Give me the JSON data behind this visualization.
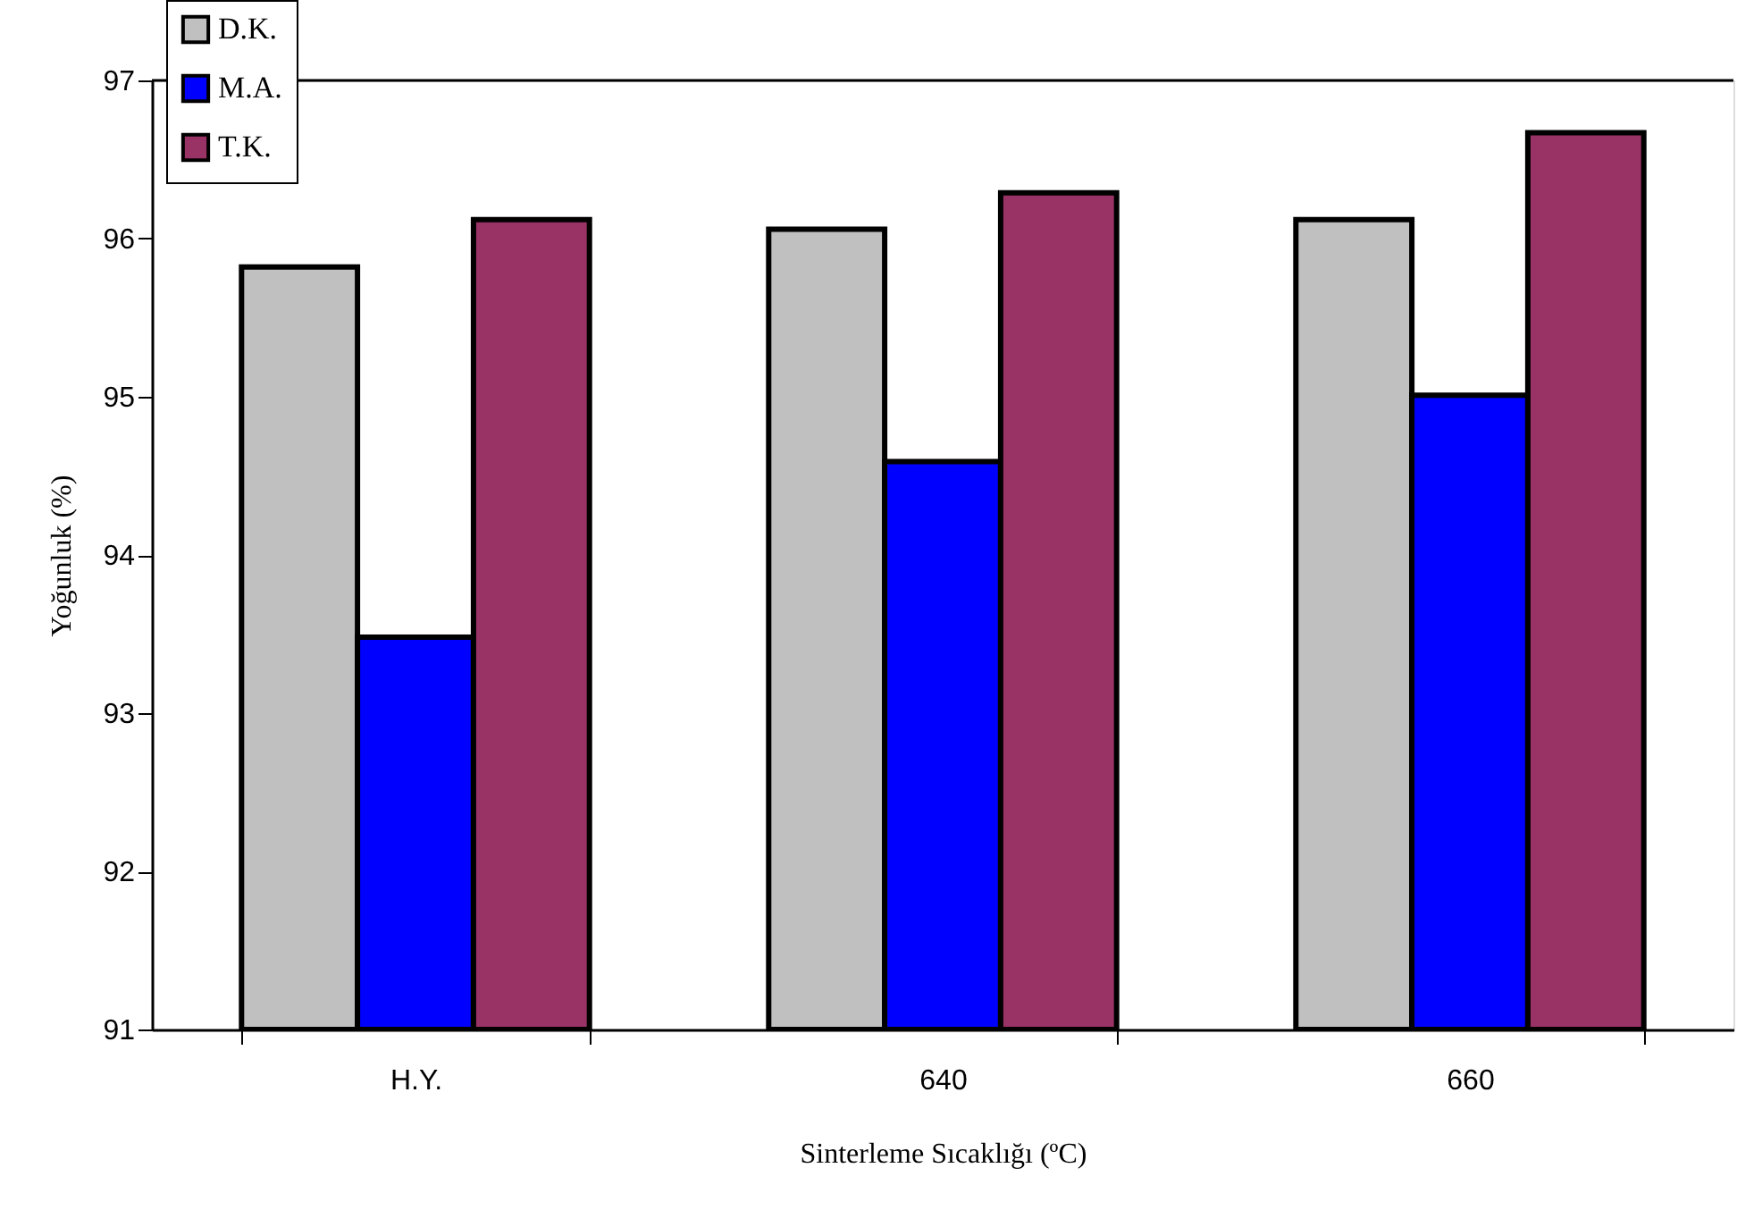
{
  "chart_data": {
    "type": "bar",
    "xlabel": "Sinterleme Sıcaklığı (ºC)",
    "ylabel": "Yoğunluk (%)",
    "categories": [
      "H.Y.",
      "640",
      "660"
    ],
    "series": [
      {
        "name": "D.K.",
        "color": "#c0c0c0",
        "values": [
          95.82,
          96.06,
          96.12
        ]
      },
      {
        "name": "M.A.",
        "color": "#0000ff",
        "values": [
          93.48,
          94.59,
          95.01
        ]
      },
      {
        "name": "T.K.",
        "color": "#993366",
        "values": [
          96.12,
          96.29,
          96.67
        ]
      }
    ],
    "ylim": [
      91,
      97
    ],
    "yticks": [
      91,
      92,
      93,
      94,
      95,
      96,
      97
    ],
    "grid": false,
    "legend": "top left"
  }
}
